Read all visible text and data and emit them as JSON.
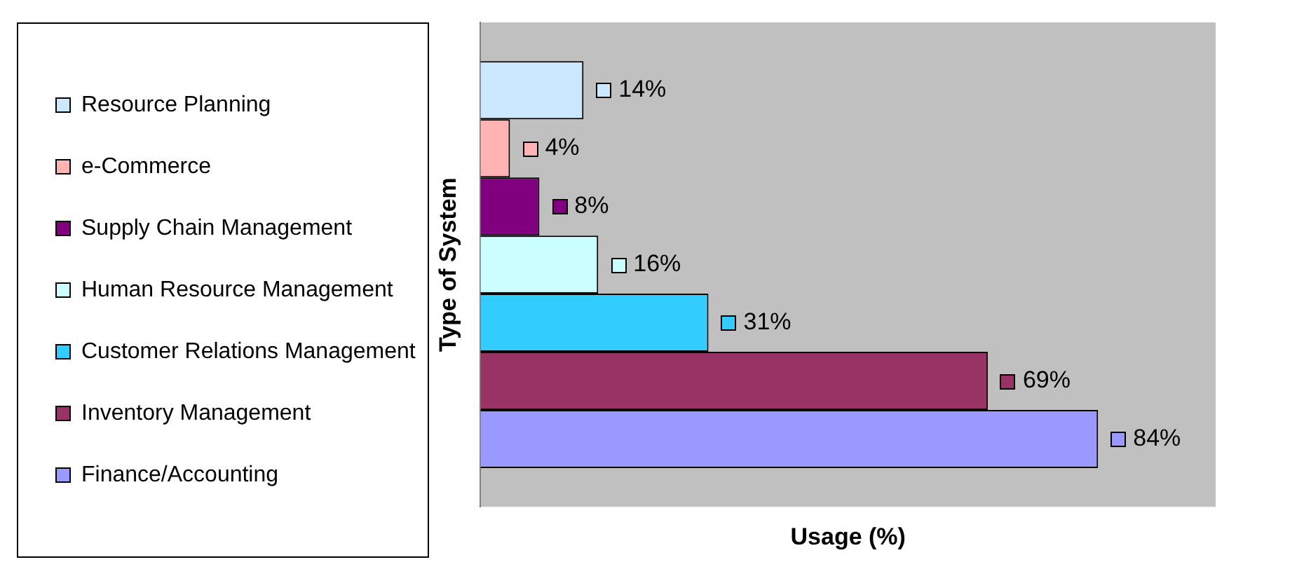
{
  "chart_data": {
    "type": "bar",
    "orientation": "horizontal",
    "xlabel": "Usage (%)",
    "ylabel": "Type of System",
    "categories": [
      null
    ],
    "series": [
      {
        "name": "Resource Planning",
        "color": "#cce8ff",
        "values": [
          14
        ],
        "value_labels": [
          "14%"
        ]
      },
      {
        "name": "e-Commerce",
        "color": "#ffb3b3",
        "values": [
          4
        ],
        "value_labels": [
          "4%"
        ]
      },
      {
        "name": "Supply Chain Management",
        "color": "#800080",
        "values": [
          8
        ],
        "value_labels": [
          "8%"
        ]
      },
      {
        "name": "Human Resource Management",
        "color": "#ccffff",
        "values": [
          16
        ],
        "value_labels": [
          "16%"
        ]
      },
      {
        "name": "Customer Relations Management",
        "color": "#33ccff",
        "values": [
          31
        ],
        "value_labels": [
          "31%"
        ]
      },
      {
        "name": "Inventory Management",
        "color": "#993366",
        "values": [
          69
        ],
        "value_labels": [
          "69%"
        ]
      },
      {
        "name": "Finance/Accounting",
        "color": "#9999ff",
        "values": [
          84
        ],
        "value_labels": [
          "84%"
        ]
      }
    ],
    "xlim": [
      0,
      100
    ],
    "tick_labels": false,
    "legend": "left"
  }
}
